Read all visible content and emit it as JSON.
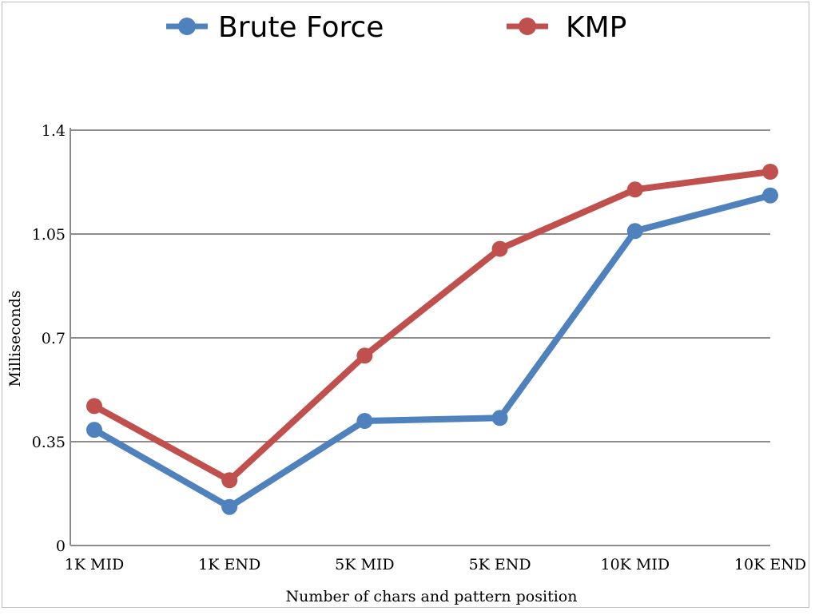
{
  "chart_data": {
    "type": "line",
    "title": "",
    "xlabel": "Number of chars and pattern position",
    "ylabel": "Milliseconds",
    "categories": [
      "1K MID",
      "1K END",
      "5K MID",
      "5K END",
      "10K MID",
      "10K END"
    ],
    "y_ticks": [
      "0",
      "0.35",
      "0.7",
      "1.05",
      "1.4"
    ],
    "ylim": [
      0,
      1.4
    ],
    "grid": true,
    "legend_position": "top",
    "series": [
      {
        "name": "Brute Force",
        "color": "#4F81BD",
        "values": [
          0.39,
          0.13,
          0.42,
          0.43,
          1.06,
          1.18
        ]
      },
      {
        "name": "KMP",
        "color": "#C0504D",
        "values": [
          0.47,
          0.22,
          0.64,
          1.0,
          1.2,
          1.26
        ]
      }
    ]
  }
}
